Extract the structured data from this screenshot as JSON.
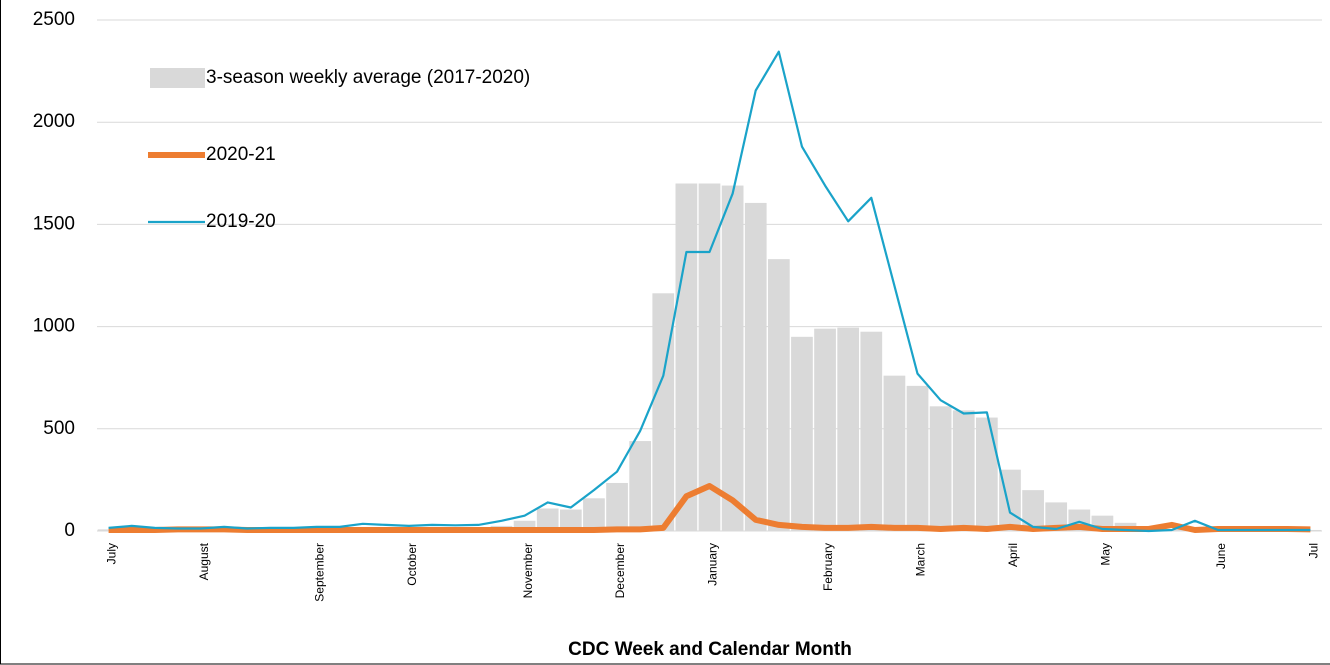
{
  "chart_data": {
    "type": "bar",
    "x_label": "CDC Week and Calendar Month",
    "categories": [
      "July",
      null,
      null,
      null,
      "August",
      null,
      null,
      null,
      null,
      "September",
      null,
      null,
      null,
      "October",
      null,
      null,
      null,
      null,
      "November",
      null,
      null,
      null,
      "December",
      null,
      null,
      null,
      "January",
      null,
      null,
      null,
      null,
      "February",
      null,
      null,
      null,
      "March",
      null,
      null,
      null,
      "April",
      null,
      null,
      null,
      "May",
      null,
      null,
      null,
      null,
      "June",
      null,
      null,
      null,
      "Jul"
    ],
    "series": [
      {
        "name": "3-season weekly average (2017-2020)",
        "type": "bar",
        "color": "#d9d9d9",
        "values": [
          8,
          8,
          8,
          8,
          8,
          8,
          8,
          8,
          8,
          10,
          10,
          10,
          10,
          12,
          12,
          15,
          18,
          25,
          50,
          110,
          105,
          160,
          235,
          440,
          1163,
          1700,
          1700,
          1690,
          1605,
          1330,
          950,
          990,
          995,
          975,
          760,
          710,
          610,
          590,
          555,
          300,
          200,
          140,
          105,
          75,
          40,
          20,
          10,
          5,
          5,
          5,
          5,
          5,
          5
        ]
      },
      {
        "name": "2020-21",
        "type": "line",
        "color": "#ed7d31",
        "values": [
          5,
          5,
          5,
          8,
          8,
          8,
          5,
          5,
          5,
          5,
          5,
          5,
          5,
          5,
          5,
          5,
          5,
          5,
          5,
          5,
          5,
          5,
          8,
          8,
          15,
          170,
          220,
          150,
          55,
          30,
          20,
          15,
          15,
          20,
          15,
          15,
          10,
          15,
          10,
          20,
          10,
          15,
          20,
          10,
          10,
          10,
          30,
          5,
          10,
          10,
          10,
          10,
          8
        ]
      },
      {
        "name": "2019-20",
        "type": "line",
        "color": "#1aa3c9",
        "values": [
          15,
          25,
          15,
          12,
          12,
          20,
          12,
          15,
          15,
          20,
          20,
          35,
          30,
          25,
          30,
          28,
          30,
          50,
          75,
          140,
          115,
          200,
          290,
          490,
          760,
          1365,
          1365,
          1650,
          2155,
          2345,
          1880,
          1690,
          1515,
          1630,
          1200,
          770,
          640,
          575,
          580,
          90,
          20,
          10,
          45,
          10,
          5,
          0,
          5,
          50,
          5,
          5,
          5,
          5,
          5
        ]
      }
    ],
    "ylim": [
      0,
      2500
    ],
    "yticks": [
      0,
      500,
      1000,
      1500,
      2000,
      2500
    ],
    "grid": true,
    "legend": "top-left"
  }
}
